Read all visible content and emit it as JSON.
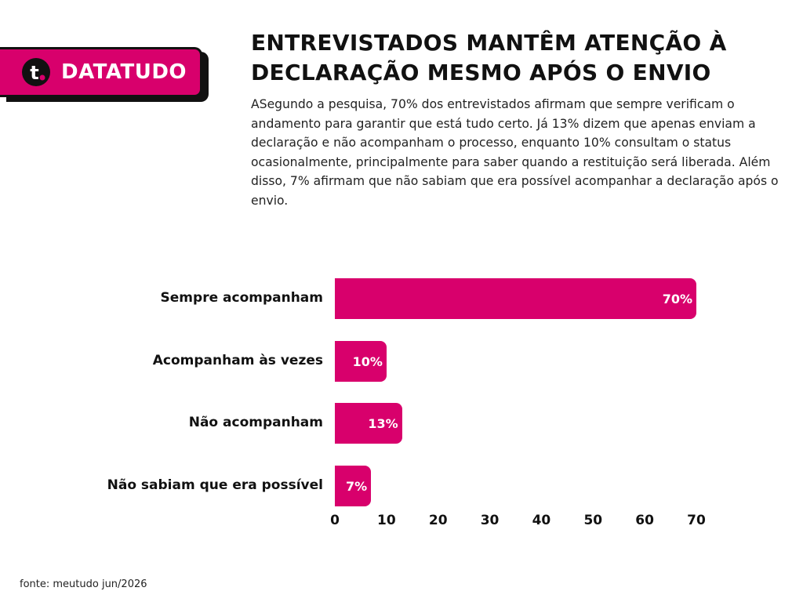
{
  "brand": {
    "name": "DATATUDO",
    "logo_letter": "t",
    "accent": "#d8006c"
  },
  "title": "ENTREVISTADOS MANTÊM ATENÇÃO À DECLARAÇÃO MESMO APÓS O ENVIO",
  "subtitle": "ASegundo a pesquisa, 70% dos entrevistados afirmam que sempre verificam o andamento para garantir que está tudo certo. Já 13% dizem que apenas enviam a declaração e não acompanham o processo, enquanto 10% consultam o status ocasionalmente, principalmente para saber quando a restituição será liberada. Além disso, 7% afirmam que não sabiam que era possível acompanhar a declaração após o envio.",
  "source": "fonte: meutudo jun/2026",
  "chart_data": {
    "type": "bar",
    "orientation": "horizontal",
    "categories": [
      "Sempre acompanham",
      "Acompanham às vezes",
      "Não acompanham",
      "Não sabiam que era possível"
    ],
    "values": [
      70,
      10,
      13,
      7
    ],
    "value_labels": [
      "70%",
      "10%",
      "13%",
      "7%"
    ],
    "xticks": [
      "0",
      "10",
      "20",
      "30",
      "40",
      "50",
      "60",
      "70"
    ],
    "xlim": [
      0,
      70
    ],
    "grid": false,
    "bar_color": "#d8006c"
  }
}
